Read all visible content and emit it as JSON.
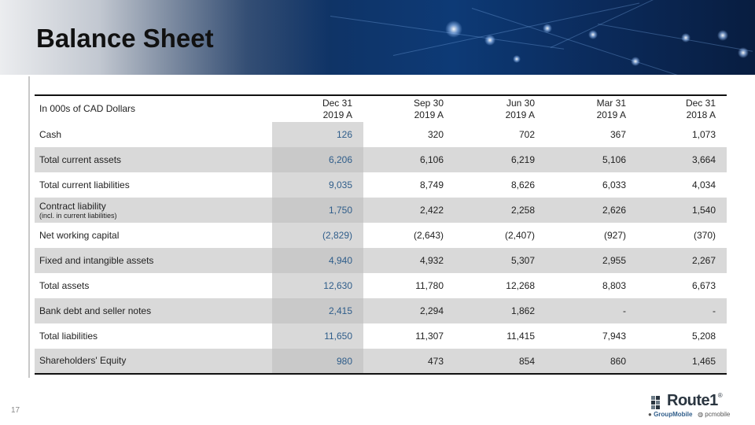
{
  "title": "Balance Sheet",
  "page_number": "17",
  "table": {
    "header_label": "In 000s of CAD Dollars",
    "columns": [
      {
        "line1": "Dec 31",
        "line2": "2019 A"
      },
      {
        "line1": "Sep 30",
        "line2": "2019 A"
      },
      {
        "line1": "Jun 30",
        "line2": "2019 A"
      },
      {
        "line1": "Mar 31",
        "line2": "2019 A"
      },
      {
        "line1": "Dec 31",
        "line2": "2018 A"
      }
    ],
    "rows": [
      {
        "label": "Cash",
        "sub": "",
        "values": [
          "126",
          "320",
          "702",
          "367",
          "1,073"
        ]
      },
      {
        "label": "Total current assets",
        "sub": "",
        "values": [
          "6,206",
          "6,106",
          "6,219",
          "5,106",
          "3,664"
        ]
      },
      {
        "label": "Total current liabilities",
        "sub": "",
        "values": [
          "9,035",
          "8,749",
          "8,626",
          "6,033",
          "4,034"
        ]
      },
      {
        "label": "Contract liability",
        "sub": "(incl. in current liabilities)",
        "values": [
          "1,750",
          "2,422",
          "2,258",
          "2,626",
          "1,540"
        ]
      },
      {
        "label": "Net working capital",
        "sub": "",
        "values": [
          "(2,829)",
          "(2,643)",
          "(2,407)",
          "(927)",
          "(370)"
        ]
      },
      {
        "label": "Fixed and intangible assets",
        "sub": "",
        "values": [
          "4,940",
          "4,932",
          "5,307",
          "2,955",
          "2,267"
        ]
      },
      {
        "label": "Total assets",
        "sub": "",
        "values": [
          "12,630",
          "11,780",
          "12,268",
          "8,803",
          "6,673"
        ]
      },
      {
        "label": "Bank debt and seller notes",
        "sub": "",
        "values": [
          "2,415",
          "2,294",
          "1,862",
          "-",
          "-"
        ]
      },
      {
        "label": "Total liabilities",
        "sub": "",
        "values": [
          "11,650",
          "11,307",
          "11,415",
          "7,943",
          "5,208"
        ]
      },
      {
        "label": "Shareholders' Equity",
        "sub": "",
        "values": [
          "980",
          "473",
          "854",
          "860",
          "1,465"
        ]
      }
    ]
  },
  "logo": {
    "name": "Route1",
    "registered": "®",
    "brand_a": "GroupMobile",
    "brand_b": "pcmobile"
  },
  "colors": {
    "banner": "#10305e",
    "shade": "#d9d9d9",
    "first_col_text": "#2f5d8a"
  }
}
